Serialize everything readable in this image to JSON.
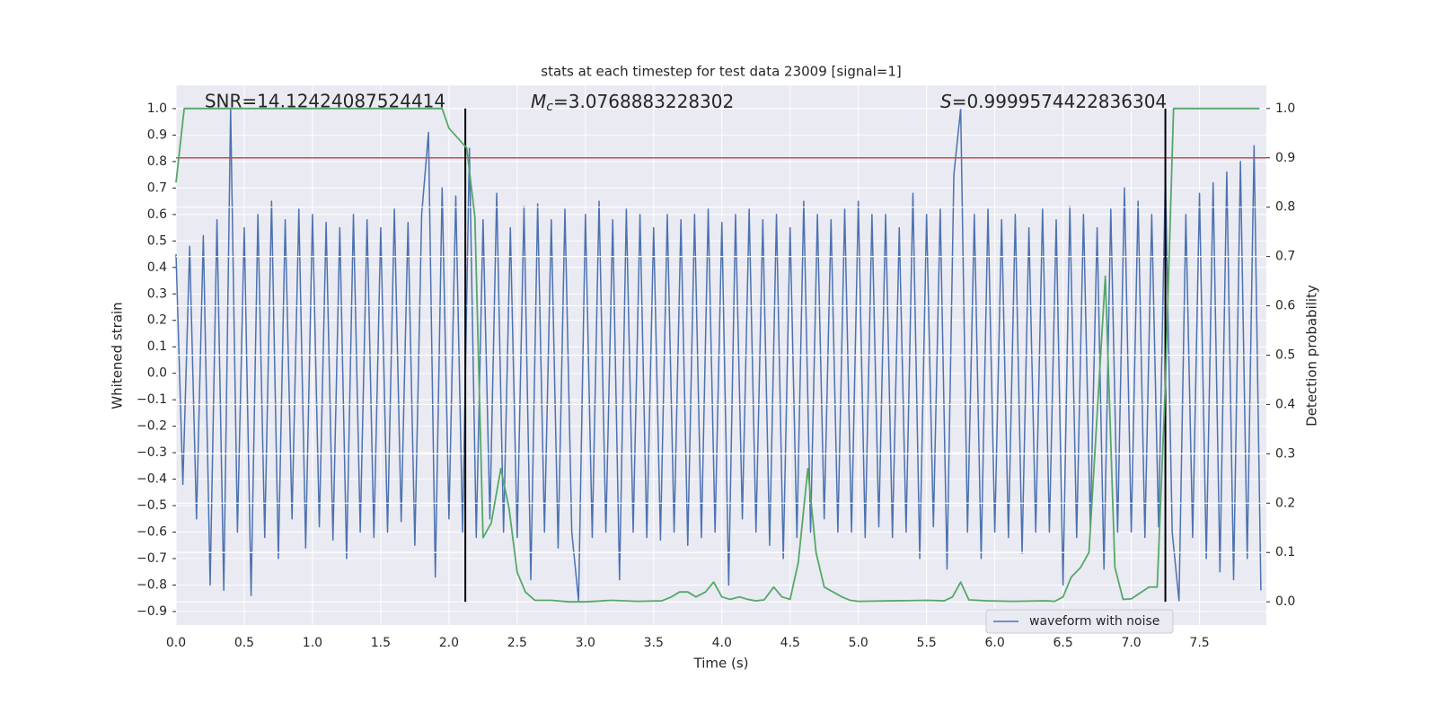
{
  "chart_data": {
    "type": "line",
    "title": "stats at each timestep for test data 23009 [signal=1]",
    "xlabel": "Time (s)",
    "ylabel": "Whitened strain",
    "y2label": "Detection probability",
    "xlim": [
      0,
      7.99
    ],
    "ylim": [
      -0.951,
      1.088
    ],
    "y2lim": [
      -0.047,
      1.047
    ],
    "xticks": [
      {
        "value": 0,
        "label": "0.0"
      },
      0.5,
      {
        "value": 1,
        "label": "1.0"
      },
      1.5,
      {
        "value": 2,
        "label": "2.0"
      },
      2.5,
      {
        "value": 3,
        "label": "3.0"
      },
      3.5,
      {
        "value": 4,
        "label": "4.0"
      },
      4.5,
      {
        "value": 5,
        "label": "5.0"
      },
      5.5,
      {
        "value": 6,
        "label": "6.0"
      },
      6.5,
      {
        "value": 7,
        "label": "7.0"
      },
      7.5
    ],
    "yticks": [
      {
        "value": -0.9,
        "label": "−0.9"
      },
      {
        "value": -0.8,
        "label": "−0.8"
      },
      {
        "value": -0.7,
        "label": "−0.7"
      },
      {
        "value": -0.6,
        "label": "−0.6"
      },
      {
        "value": -0.5,
        "label": "−0.5"
      },
      {
        "value": -0.4,
        "label": "−0.4"
      },
      {
        "value": -0.3,
        "label": "−0.3"
      },
      {
        "value": -0.2,
        "label": "−0.2"
      },
      {
        "value": -0.1,
        "label": "−0.1"
      },
      {
        "value": 0,
        "label": "0.0"
      },
      0.1,
      0.2,
      0.3,
      0.4,
      0.5,
      0.6,
      0.7,
      0.8,
      0.9,
      {
        "value": 1,
        "label": "1.0"
      }
    ],
    "y2ticks": [
      {
        "value": 0,
        "label": "0.0"
      },
      0.1,
      0.2,
      0.3,
      0.4,
      0.5,
      0.6,
      0.7,
      0.8,
      0.9,
      {
        "value": 1,
        "label": "1.0"
      }
    ],
    "grid": true,
    "legend": "lower right",
    "annotations": {
      "snr": "SNR=14.12424087524414",
      "mc": {
        "symbol": "M",
        "subscript": "c",
        "text": "=3.0768883228302"
      },
      "s": {
        "symbol": "S",
        "text": "=0.9999574422836304"
      }
    },
    "threshold": {
      "value": 0.9,
      "axis": "y2",
      "color": "#c44e52"
    },
    "vlines": [
      2.12,
      7.25
    ],
    "vline_color": "#000000",
    "series": [
      {
        "name": "waveform with noise",
        "color": "#4c72b0",
        "x": [
          0,
          0.05,
          0.1,
          0.15,
          0.2,
          0.25,
          0.3,
          0.35,
          0.4,
          0.45,
          0.5,
          0.55,
          0.6,
          0.65,
          0.7,
          0.75,
          0.8,
          0.85,
          0.9,
          0.95,
          1,
          1.05,
          1.1,
          1.15,
          1.2,
          1.25,
          1.3,
          1.35,
          1.4,
          1.45,
          1.5,
          1.55,
          1.6,
          1.65,
          1.7,
          1.75,
          1.8,
          1.85,
          1.9,
          1.95,
          2,
          2.05,
          2.1,
          2.15,
          2.2,
          2.25,
          2.3,
          2.35,
          2.4,
          2.45,
          2.5,
          2.55,
          2.6,
          2.65,
          2.7,
          2.75,
          2.8,
          2.85,
          2.9,
          2.95,
          3,
          3.05,
          3.1,
          3.15,
          3.2,
          3.25,
          3.3,
          3.35,
          3.4,
          3.45,
          3.5,
          3.55,
          3.6,
          3.65,
          3.7,
          3.75,
          3.8,
          3.85,
          3.9,
          3.95,
          4,
          4.05,
          4.1,
          4.15,
          4.2,
          4.25,
          4.3,
          4.35,
          4.4,
          4.45,
          4.5,
          4.55,
          4.6,
          4.65,
          4.7,
          4.75,
          4.8,
          4.85,
          4.9,
          4.95,
          5,
          5.05,
          5.1,
          5.15,
          5.2,
          5.25,
          5.3,
          5.35,
          5.4,
          5.45,
          5.5,
          5.55,
          5.6,
          5.65,
          5.7,
          5.75,
          5.8,
          5.85,
          5.9,
          5.95,
          6,
          6.05,
          6.1,
          6.15,
          6.2,
          6.25,
          6.3,
          6.35,
          6.4,
          6.45,
          6.5,
          6.55,
          6.6,
          6.65,
          6.7,
          6.75,
          6.8,
          6.85,
          6.9,
          6.95,
          7,
          7.05,
          7.1,
          7.15,
          7.2,
          7.25,
          7.3,
          7.35,
          7.4,
          7.45,
          7.5,
          7.55,
          7.6,
          7.65,
          7.7,
          7.75,
          7.8,
          7.85,
          7.9,
          7.95
        ],
        "values": [
          0.45,
          -0.42,
          0.48,
          -0.55,
          0.52,
          -0.8,
          0.58,
          -0.82,
          1.0,
          -0.6,
          0.55,
          -0.84,
          0.6,
          -0.62,
          0.65,
          -0.7,
          0.58,
          -0.55,
          0.62,
          -0.66,
          0.6,
          -0.58,
          0.57,
          -0.63,
          0.55,
          -0.7,
          0.6,
          -0.6,
          0.58,
          -0.62,
          0.55,
          -0.6,
          0.62,
          -0.56,
          0.57,
          -0.65,
          0.6,
          0.91,
          -0.77,
          0.7,
          -0.55,
          0.67,
          -0.6,
          0.85,
          -0.62,
          0.58,
          -0.55,
          0.68,
          -0.6,
          0.55,
          -0.62,
          0.63,
          -0.78,
          0.64,
          -0.6,
          0.58,
          -0.66,
          0.62,
          -0.6,
          -0.86,
          0.6,
          -0.62,
          0.65,
          -0.6,
          0.58,
          -0.78,
          0.62,
          -0.6,
          0.6,
          -0.62,
          0.55,
          -0.63,
          0.6,
          -0.6,
          0.58,
          -0.65,
          0.6,
          -0.62,
          0.62,
          -0.6,
          0.57,
          -0.8,
          0.6,
          -0.55,
          0.62,
          -0.6,
          0.58,
          -0.65,
          0.6,
          -0.7,
          0.55,
          -0.62,
          0.65,
          -0.6,
          0.6,
          -0.55,
          0.58,
          -0.6,
          0.62,
          -0.6,
          0.65,
          -0.62,
          0.6,
          -0.58,
          0.6,
          -0.62,
          0.55,
          -0.6,
          0.68,
          -0.7,
          0.6,
          -0.58,
          0.62,
          -0.74,
          0.75,
          1.0,
          -0.6,
          0.6,
          -0.7,
          0.62,
          -0.6,
          0.58,
          -0.62,
          0.6,
          -0.68,
          0.55,
          -0.6,
          0.62,
          -0.6,
          0.58,
          -0.8,
          0.63,
          -0.62,
          0.6,
          -0.58,
          0.55,
          -0.74,
          0.62,
          -0.6,
          0.7,
          -0.6,
          0.65,
          -0.62,
          0.6,
          -0.58,
          0.75,
          -0.6,
          -0.86,
          0.6,
          -0.62,
          0.68,
          -0.7,
          0.72,
          -0.75,
          0.76,
          -0.78,
          0.8,
          -0.7,
          0.86,
          -0.82
        ]
      },
      {
        "color": "#55a868",
        "axis": "y2",
        "x": [
          0,
          0.06,
          0.12,
          1.95,
          2.0,
          2.13,
          2.19,
          2.25,
          2.31,
          2.38,
          2.44,
          2.5,
          2.56,
          2.63,
          2.75,
          2.88,
          3.0,
          3.19,
          3.38,
          3.56,
          3.63,
          3.69,
          3.75,
          3.81,
          3.88,
          3.94,
          4.0,
          4.06,
          4.13,
          4.19,
          4.25,
          4.31,
          4.38,
          4.44,
          4.5,
          4.56,
          4.63,
          4.69,
          4.75,
          4.88,
          4.94,
          5.0,
          5.25,
          5.5,
          5.63,
          5.69,
          5.75,
          5.81,
          5.94,
          6.13,
          6.38,
          6.44,
          6.5,
          6.56,
          6.63,
          6.69,
          6.75,
          6.81,
          6.88,
          6.94,
          7.0,
          7.13,
          7.19,
          7.25,
          7.31,
          7.38,
          7.94
        ],
        "values": [
          0.85,
          1.0,
          1.0,
          1.0,
          0.96,
          0.92,
          0.78,
          0.13,
          0.16,
          0.27,
          0.19,
          0.06,
          0.02,
          0.003,
          0.003,
          0.0,
          0.0,
          0.003,
          0.001,
          0.002,
          0.01,
          0.02,
          0.02,
          0.01,
          0.02,
          0.04,
          0.01,
          0.005,
          0.01,
          0.005,
          0.002,
          0.004,
          0.03,
          0.01,
          0.005,
          0.08,
          0.27,
          0.1,
          0.03,
          0.01,
          0.003,
          0.001,
          0.002,
          0.003,
          0.002,
          0.01,
          0.04,
          0.004,
          0.002,
          0.001,
          0.002,
          0.001,
          0.01,
          0.05,
          0.07,
          0.1,
          0.38,
          0.66,
          0.07,
          0.005,
          0.006,
          0.03,
          0.03,
          0.44,
          1.0,
          1.0,
          1.0
        ]
      }
    ]
  }
}
